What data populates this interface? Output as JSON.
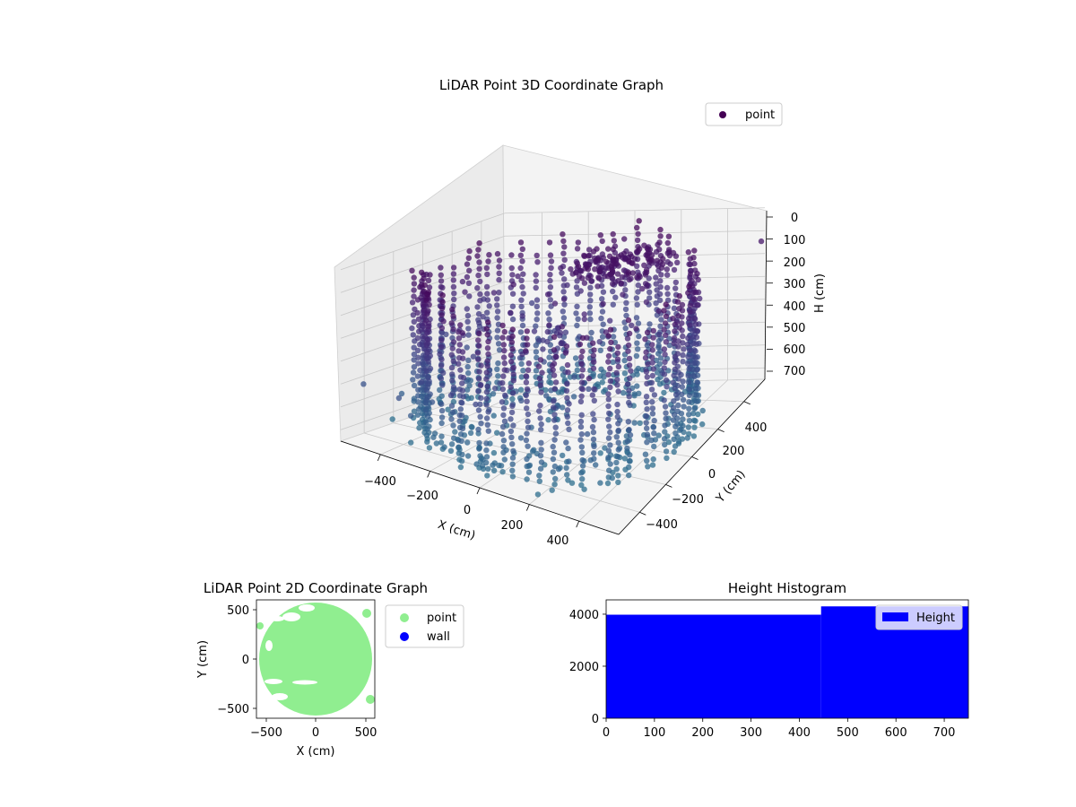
{
  "chart_data": [
    {
      "type": "scatter",
      "title": "LiDAR Point 3D Coordinate Graph",
      "xlabel": "X (cm)",
      "ylabel": "Y (cm)",
      "zlabel": "H (cm)",
      "x_ticks": [
        "−400",
        "−200",
        "0",
        "200",
        "400"
      ],
      "y_ticks": [
        "−400",
        "−200",
        "0",
        "200",
        "400"
      ],
      "z_ticks": [
        "0",
        "100",
        "200",
        "300",
        "400",
        "500",
        "600",
        "700"
      ],
      "xlim": [
        -560,
        560
      ],
      "ylim": [
        -560,
        560
      ],
      "zlim": [
        0,
        750
      ],
      "z_inverted": true,
      "legend": [
        {
          "label": "point",
          "color": "#440154"
        }
      ],
      "legend_position": "top-right",
      "grid": true,
      "colormap": "viridis (by height)",
      "description": "Cylindrical ring of wall points (radius ~500 cm) spanning heights 0-700 cm, plus a dense cluster near the ceiling and scattered outliers."
    },
    {
      "type": "scatter",
      "title": "LiDAR Point 2D Coordinate Graph",
      "xlabel": "X (cm)",
      "ylabel": "Y (cm)",
      "x_ticks": [
        "−500",
        "0",
        "500"
      ],
      "y_ticks": [
        "500",
        "0",
        "−500"
      ],
      "xlim": [
        -590,
        590
      ],
      "ylim": [
        -590,
        590
      ],
      "legend": [
        {
          "label": "point",
          "color": "#90ee90"
        },
        {
          "label": "wall",
          "color": "#0000ff"
        }
      ],
      "legend_position": "outside-right",
      "description": "Dense light-green disc of points filling a circle of radius ~560 cm."
    },
    {
      "type": "bar",
      "title": "Height Histogram",
      "x_ticks": [
        "0",
        "100",
        "200",
        "300",
        "400",
        "500",
        "600",
        "700"
      ],
      "y_ticks": [
        "0",
        "2000",
        "4000"
      ],
      "xlim": [
        0,
        750
      ],
      "ylim": [
        0,
        4550
      ],
      "bins": [
        {
          "x0": 0,
          "x1": 445,
          "count": 3980
        },
        {
          "x0": 445,
          "x1": 750,
          "count": 4300
        }
      ],
      "legend": [
        {
          "label": "Height",
          "color": "#0000ff"
        }
      ],
      "legend_position": "upper right",
      "color": "#0000ff"
    }
  ]
}
